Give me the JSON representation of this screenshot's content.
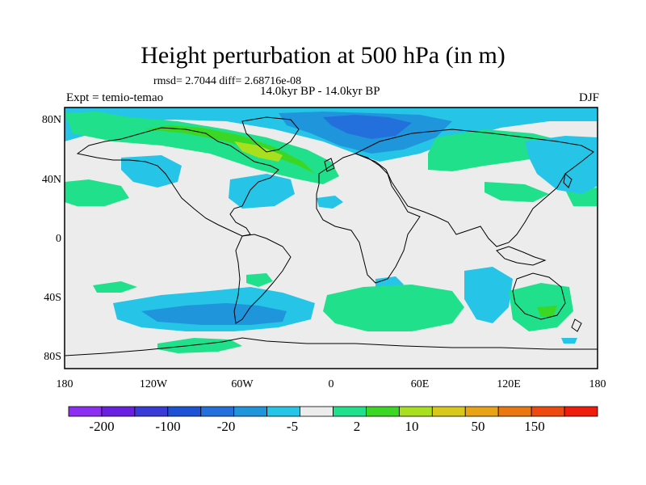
{
  "title": "Height perturbation at 500 hPa (in m)",
  "stats": "rmsd= 2.7044 diff= 2.68716e-08",
  "period": "14.0kyr BP - 14.0kyr BP",
  "expt": "Expt = temio-temao",
  "season": "DJF",
  "lat_labels": [
    "80N",
    "40N",
    "0",
    "40S",
    "80S"
  ],
  "lon_labels": [
    "180",
    "120W",
    "60W",
    "0",
    "60E",
    "120E",
    "180"
  ],
  "colorbar": {
    "colors": [
      "#8c2ff0",
      "#6a20e0",
      "#3a3ad6",
      "#1e52d4",
      "#2370dc",
      "#1f95dc",
      "#26c4e6",
      "#ececec",
      "#20e08c",
      "#3cd624",
      "#a8e020",
      "#d8c81c",
      "#e8a414",
      "#ea7810",
      "#ee4a10",
      "#f01c0c"
    ],
    "labels": [
      "-200",
      "-100",
      "-20",
      "-5",
      "2",
      "10",
      "50",
      "150"
    ]
  },
  "map": {
    "background": "#ececec",
    "land_outline": "#000000"
  }
}
